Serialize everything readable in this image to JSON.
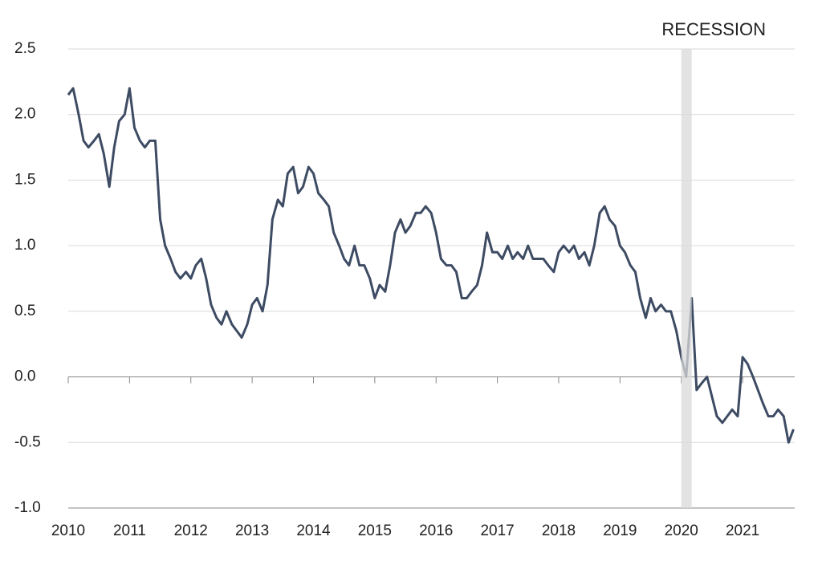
{
  "chart_data": {
    "type": "line",
    "x": [
      2010,
      2010.08,
      2010.17,
      2010.25,
      2010.33,
      2010.42,
      2010.5,
      2010.58,
      2010.67,
      2010.75,
      2010.83,
      2010.92,
      2011,
      2011.08,
      2011.17,
      2011.25,
      2011.33,
      2011.42,
      2011.5,
      2011.58,
      2011.67,
      2011.75,
      2011.83,
      2011.92,
      2012,
      2012.08,
      2012.17,
      2012.25,
      2012.33,
      2012.42,
      2012.5,
      2012.58,
      2012.67,
      2012.75,
      2012.83,
      2012.92,
      2013,
      2013.08,
      2013.17,
      2013.25,
      2013.33,
      2013.42,
      2013.5,
      2013.58,
      2013.67,
      2013.75,
      2013.83,
      2013.92,
      2014,
      2014.08,
      2014.17,
      2014.25,
      2014.33,
      2014.42,
      2014.5,
      2014.58,
      2014.67,
      2014.75,
      2014.83,
      2014.92,
      2015,
      2015.08,
      2015.17,
      2015.25,
      2015.33,
      2015.42,
      2015.5,
      2015.58,
      2015.67,
      2015.75,
      2015.83,
      2015.92,
      2016,
      2016.08,
      2016.17,
      2016.25,
      2016.33,
      2016.42,
      2016.5,
      2016.58,
      2016.67,
      2016.75,
      2016.83,
      2016.92,
      2017,
      2017.08,
      2017.17,
      2017.25,
      2017.33,
      2017.42,
      2017.5,
      2017.58,
      2017.67,
      2017.75,
      2017.83,
      2017.92,
      2018,
      2018.08,
      2018.17,
      2018.25,
      2018.33,
      2018.42,
      2018.5,
      2018.58,
      2018.67,
      2018.75,
      2018.83,
      2018.92,
      2019,
      2019.08,
      2019.17,
      2019.25,
      2019.33,
      2019.42,
      2019.5,
      2019.58,
      2019.67,
      2019.75,
      2019.83,
      2019.92,
      2020,
      2020.08,
      2020.17,
      2020.25,
      2020.33,
      2020.42,
      2020.5,
      2020.58,
      2020.67,
      2020.75,
      2020.83,
      2020.92,
      2021,
      2021.08,
      2021.17,
      2021.25,
      2021.33,
      2021.42,
      2021.5,
      2021.58,
      2021.67,
      2021.75,
      2021.83
    ],
    "series": [
      {
        "color": "#3d4b63",
        "values": [
          2.15,
          2.2,
          2.0,
          1.8,
          1.75,
          1.8,
          1.85,
          1.7,
          1.45,
          1.75,
          1.95,
          2.0,
          2.2,
          1.9,
          1.8,
          1.75,
          1.8,
          1.8,
          1.2,
          1.0,
          0.9,
          0.8,
          0.75,
          0.8,
          0.75,
          0.85,
          0.9,
          0.75,
          0.55,
          0.45,
          0.4,
          0.5,
          0.4,
          0.35,
          0.3,
          0.4,
          0.55,
          0.6,
          0.5,
          0.7,
          1.2,
          1.35,
          1.3,
          1.55,
          1.6,
          1.4,
          1.45,
          1.6,
          1.55,
          1.4,
          1.35,
          1.3,
          1.1,
          1.0,
          0.9,
          0.85,
          1.0,
          0.85,
          0.85,
          0.75,
          0.6,
          0.7,
          0.65,
          0.85,
          1.1,
          1.2,
          1.1,
          1.15,
          1.25,
          1.25,
          1.3,
          1.25,
          1.1,
          0.9,
          0.85,
          0.85,
          0.8,
          0.6,
          0.6,
          0.65,
          0.7,
          0.85,
          1.1,
          0.95,
          0.95,
          0.9,
          1.0,
          0.9,
          0.95,
          0.9,
          1.0,
          0.9,
          0.9,
          0.9,
          0.85,
          0.8,
          0.95,
          1.0,
          0.95,
          1.0,
          0.9,
          0.95,
          0.85,
          1.0,
          1.25,
          1.3,
          1.2,
          1.15,
          1.0,
          0.95,
          0.85,
          0.8,
          0.6,
          0.45,
          0.6,
          0.5,
          0.55,
          0.5,
          0.5,
          0.35,
          0.15,
          0.0,
          0.6,
          -0.1,
          -0.05,
          0.0,
          -0.15,
          -0.3,
          -0.35,
          -0.3,
          -0.25,
          -0.3,
          0.15,
          0.1,
          0.0,
          -0.1,
          -0.2,
          -0.3,
          -0.3,
          -0.25,
          -0.3,
          -0.5,
          -0.4
        ]
      }
    ],
    "xlim": [
      2010,
      2021.85
    ],
    "xticks": [
      2010,
      2011,
      2012,
      2013,
      2014,
      2015,
      2016,
      2017,
      2018,
      2019,
      2020,
      2021
    ],
    "ylim": [
      -1,
      2.5
    ],
    "yticks": [
      {
        "value": -1,
        "label": "-1.0"
      },
      -0.5,
      {
        "value": 0,
        "label": "0.0"
      },
      0.5,
      {
        "value": 1,
        "label": "1.0"
      },
      1.5,
      {
        "value": 2,
        "label": "2.0"
      },
      2.5
    ],
    "grid": true,
    "recession": {
      "start": 2020,
      "end": 2020.17,
      "label": "RECESSION",
      "color": "#d9d9d9"
    }
  }
}
